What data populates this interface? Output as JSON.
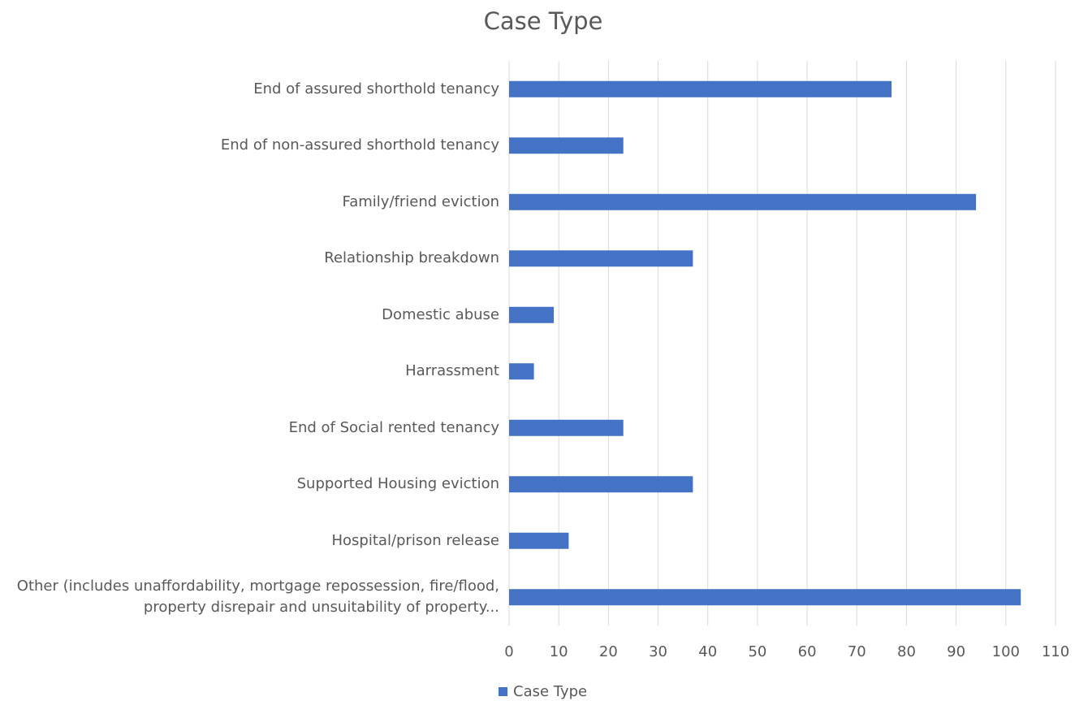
{
  "chart_data": {
    "type": "bar",
    "orientation": "horizontal",
    "title": "Case Type",
    "categories": [
      "End of assured shorthold tenancy",
      "End of non-assured shorthold tenancy",
      "Family/friend eviction",
      "Relationship breakdown",
      "Domestic abuse",
      "Harrassment",
      "End of Social rented tenancy",
      "Supported Housing eviction",
      "Hospital/prison release",
      "Other (includes unaffordability, mortgage repossession, fire/flood, property disrepair and unsuitability of property..."
    ],
    "series": [
      {
        "name": "Case Type",
        "color": "#4472c4",
        "values": [
          77,
          23,
          94,
          37,
          9,
          5,
          23,
          37,
          12,
          103
        ]
      }
    ],
    "xlim": [
      0,
      110
    ],
    "xticks": [
      0,
      10,
      20,
      30,
      40,
      50,
      60,
      70,
      80,
      90,
      100,
      110
    ],
    "grid": true,
    "legend": "bottom"
  }
}
